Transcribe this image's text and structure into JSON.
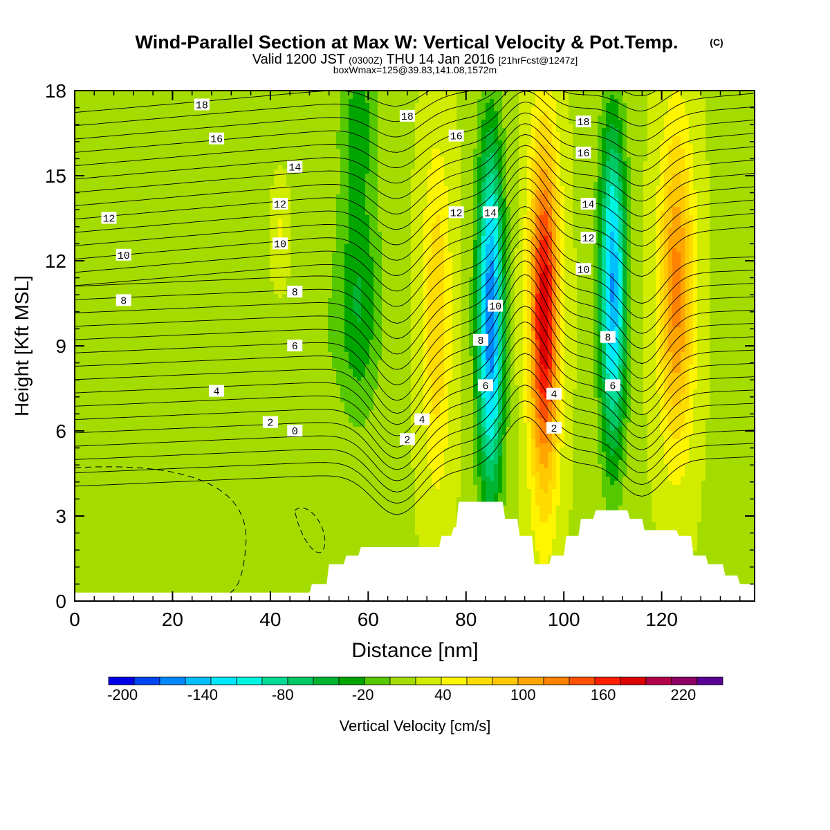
{
  "chart_data": {
    "type": "heatmap",
    "title": "Wind-Parallel Section at Max W: Vertical Velocity & Pot.Temp.",
    "title_mark": "(C)",
    "subtitle_parts": [
      "Valid 1200 JST",
      "(0300Z)",
      "THU 14 Jan 2016",
      "[21hrFcst@1247z]"
    ],
    "subtitle2": "boxWmax=125@39.83,141.08,1572m",
    "xlabel": "Distance [nm]",
    "ylabel": "Height [Kft MSL]",
    "xlim": [
      0,
      139
    ],
    "ylim": [
      0,
      18
    ],
    "x_ticks": [
      "0",
      "20",
      "40",
      "60",
      "80",
      "100",
      "120"
    ],
    "y_ticks": [
      "0",
      "3",
      "6",
      "9",
      "12",
      "15",
      "18"
    ],
    "colorbar": {
      "label": "Vertical Velocity [cm/s]",
      "tick_labels": [
        "-200",
        "-140",
        "-80",
        "-20",
        "40",
        "100",
        "160",
        "220"
      ],
      "range": [
        -220,
        240
      ],
      "step": 20,
      "colors": [
        "#0000e6",
        "#0044f2",
        "#0088ff",
        "#00bfff",
        "#00e8ff",
        "#00f5e0",
        "#00dc96",
        "#00c864",
        "#00b432",
        "#00a500",
        "#55c800",
        "#a5dc00",
        "#d2ec00",
        "#fff500",
        "#ffdc00",
        "#ffc800",
        "#ffa500",
        "#ff8200",
        "#ff5000",
        "#ff1e00",
        "#dc0000",
        "#b4004b",
        "#8c0064",
        "#5a0096"
      ]
    },
    "theta_contour_labels": [
      "0",
      "2",
      "4",
      "6",
      "8",
      "10",
      "12",
      "14",
      "16",
      "18"
    ],
    "w_field": {
      "background": 18,
      "features": [
        {
          "x": 58,
          "z": 10.5,
          "sx": 4.5,
          "sz": 4.0,
          "w": -60
        },
        {
          "x": 58,
          "z": 17.0,
          "sx": 4.0,
          "sz": 3.0,
          "w": -45
        },
        {
          "x": 50,
          "z": 8.0,
          "sx": 3.0,
          "sz": 5.0,
          "w": -15
        },
        {
          "x": 74,
          "z": 10.0,
          "sx": 3.0,
          "sz": 6.0,
          "w": 60
        },
        {
          "x": 85,
          "z": 10.0,
          "sx": 2.6,
          "sz": 6.0,
          "w": -200
        },
        {
          "x": 96,
          "z": 10.0,
          "sx": 3.0,
          "sz": 6.0,
          "w": 180
        },
        {
          "x": 110,
          "z": 11.0,
          "sx": 2.6,
          "sz": 5.5,
          "w": -180
        },
        {
          "x": 123,
          "z": 11.0,
          "sx": 3.5,
          "sz": 5.5,
          "w": 110
        },
        {
          "x": 34,
          "z": 9.0,
          "sx": 2.0,
          "sz": 3.0,
          "w": -12
        },
        {
          "x": 10,
          "z": 4.0,
          "sx": 12.0,
          "sz": 3.0,
          "w": -10
        },
        {
          "x": 42,
          "z": 13.0,
          "sx": 1.5,
          "sz": 1.5,
          "w": 25
        }
      ]
    },
    "terrain": [
      {
        "x": 0,
        "z": 0.3
      },
      {
        "x": 48,
        "z": 0.3
      },
      {
        "x": 48.5,
        "z": 0.6
      },
      {
        "x": 51.5,
        "z": 0.6
      },
      {
        "x": 52,
        "z": 1.3
      },
      {
        "x": 55,
        "z": 1.3
      },
      {
        "x": 55.5,
        "z": 1.6
      },
      {
        "x": 58,
        "z": 1.6
      },
      {
        "x": 58.5,
        "z": 1.9
      },
      {
        "x": 74.5,
        "z": 1.9
      },
      {
        "x": 75,
        "z": 2.3
      },
      {
        "x": 77,
        "z": 2.3
      },
      {
        "x": 77.5,
        "z": 2.6
      },
      {
        "x": 78,
        "z": 2.6
      },
      {
        "x": 78.5,
        "z": 3.5
      },
      {
        "x": 87.5,
        "z": 3.5
      },
      {
        "x": 88,
        "z": 2.9
      },
      {
        "x": 90.5,
        "z": 2.9
      },
      {
        "x": 91,
        "z": 2.3
      },
      {
        "x": 93.5,
        "z": 2.3
      },
      {
        "x": 94,
        "z": 1.3
      },
      {
        "x": 97,
        "z": 1.3
      },
      {
        "x": 97.5,
        "z": 1.6
      },
      {
        "x": 100,
        "z": 1.6
      },
      {
        "x": 100.5,
        "z": 2.3
      },
      {
        "x": 103,
        "z": 2.3
      },
      {
        "x": 103.5,
        "z": 2.9
      },
      {
        "x": 106,
        "z": 2.9
      },
      {
        "x": 106.5,
        "z": 3.2
      },
      {
        "x": 113,
        "z": 3.2
      },
      {
        "x": 113.5,
        "z": 2.9
      },
      {
        "x": 116,
        "z": 2.9
      },
      {
        "x": 116.5,
        "z": 2.5
      },
      {
        "x": 123,
        "z": 2.5
      },
      {
        "x": 123.5,
        "z": 2.3
      },
      {
        "x": 126,
        "z": 2.3
      },
      {
        "x": 126.5,
        "z": 1.6
      },
      {
        "x": 129,
        "z": 1.6
      },
      {
        "x": 129.5,
        "z": 1.3
      },
      {
        "x": 132.5,
        "z": 1.3
      },
      {
        "x": 133,
        "z": 0.9
      },
      {
        "x": 135.5,
        "z": 0.9
      },
      {
        "x": 136,
        "z": 0.6
      },
      {
        "x": 139,
        "z": 0.6
      }
    ]
  }
}
